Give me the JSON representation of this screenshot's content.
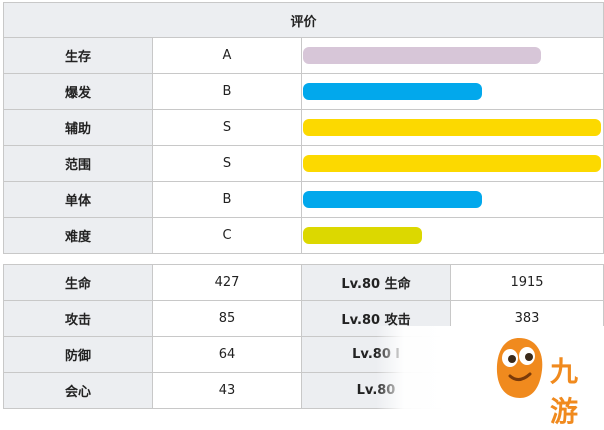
{
  "rating": {
    "header": "评价",
    "rows": [
      {
        "label": "生存",
        "grade": "A",
        "fill": 0.8,
        "color": "#d7c6d8"
      },
      {
        "label": "爆发",
        "grade": "B",
        "fill": 0.6,
        "color": "#02a8ec"
      },
      {
        "label": "辅助",
        "grade": "S",
        "fill": 1.0,
        "color": "#fcd900"
      },
      {
        "label": "范围",
        "grade": "S",
        "fill": 1.0,
        "color": "#fcd900"
      },
      {
        "label": "单体",
        "grade": "B",
        "fill": 0.6,
        "color": "#02a8ec"
      },
      {
        "label": "难度",
        "grade": "C",
        "fill": 0.4,
        "color": "#dcd800"
      }
    ]
  },
  "stats": {
    "rows": [
      {
        "label": "生命",
        "value": "427",
        "lv_label": "Lv.80 生命",
        "lv_value": "1915"
      },
      {
        "label": "攻击",
        "value": "85",
        "lv_label": "Lv.80 攻击",
        "lv_value": "383"
      },
      {
        "label": "防御",
        "value": "64",
        "lv_label": "Lv.80 l",
        "lv_value": ""
      },
      {
        "label": "会心",
        "value": "43",
        "lv_label": "Lv.80",
        "lv_value": ""
      }
    ]
  },
  "watermark": {
    "text": "九游",
    "icon": "mascot-logo-icon",
    "color": "#f08a1e"
  }
}
